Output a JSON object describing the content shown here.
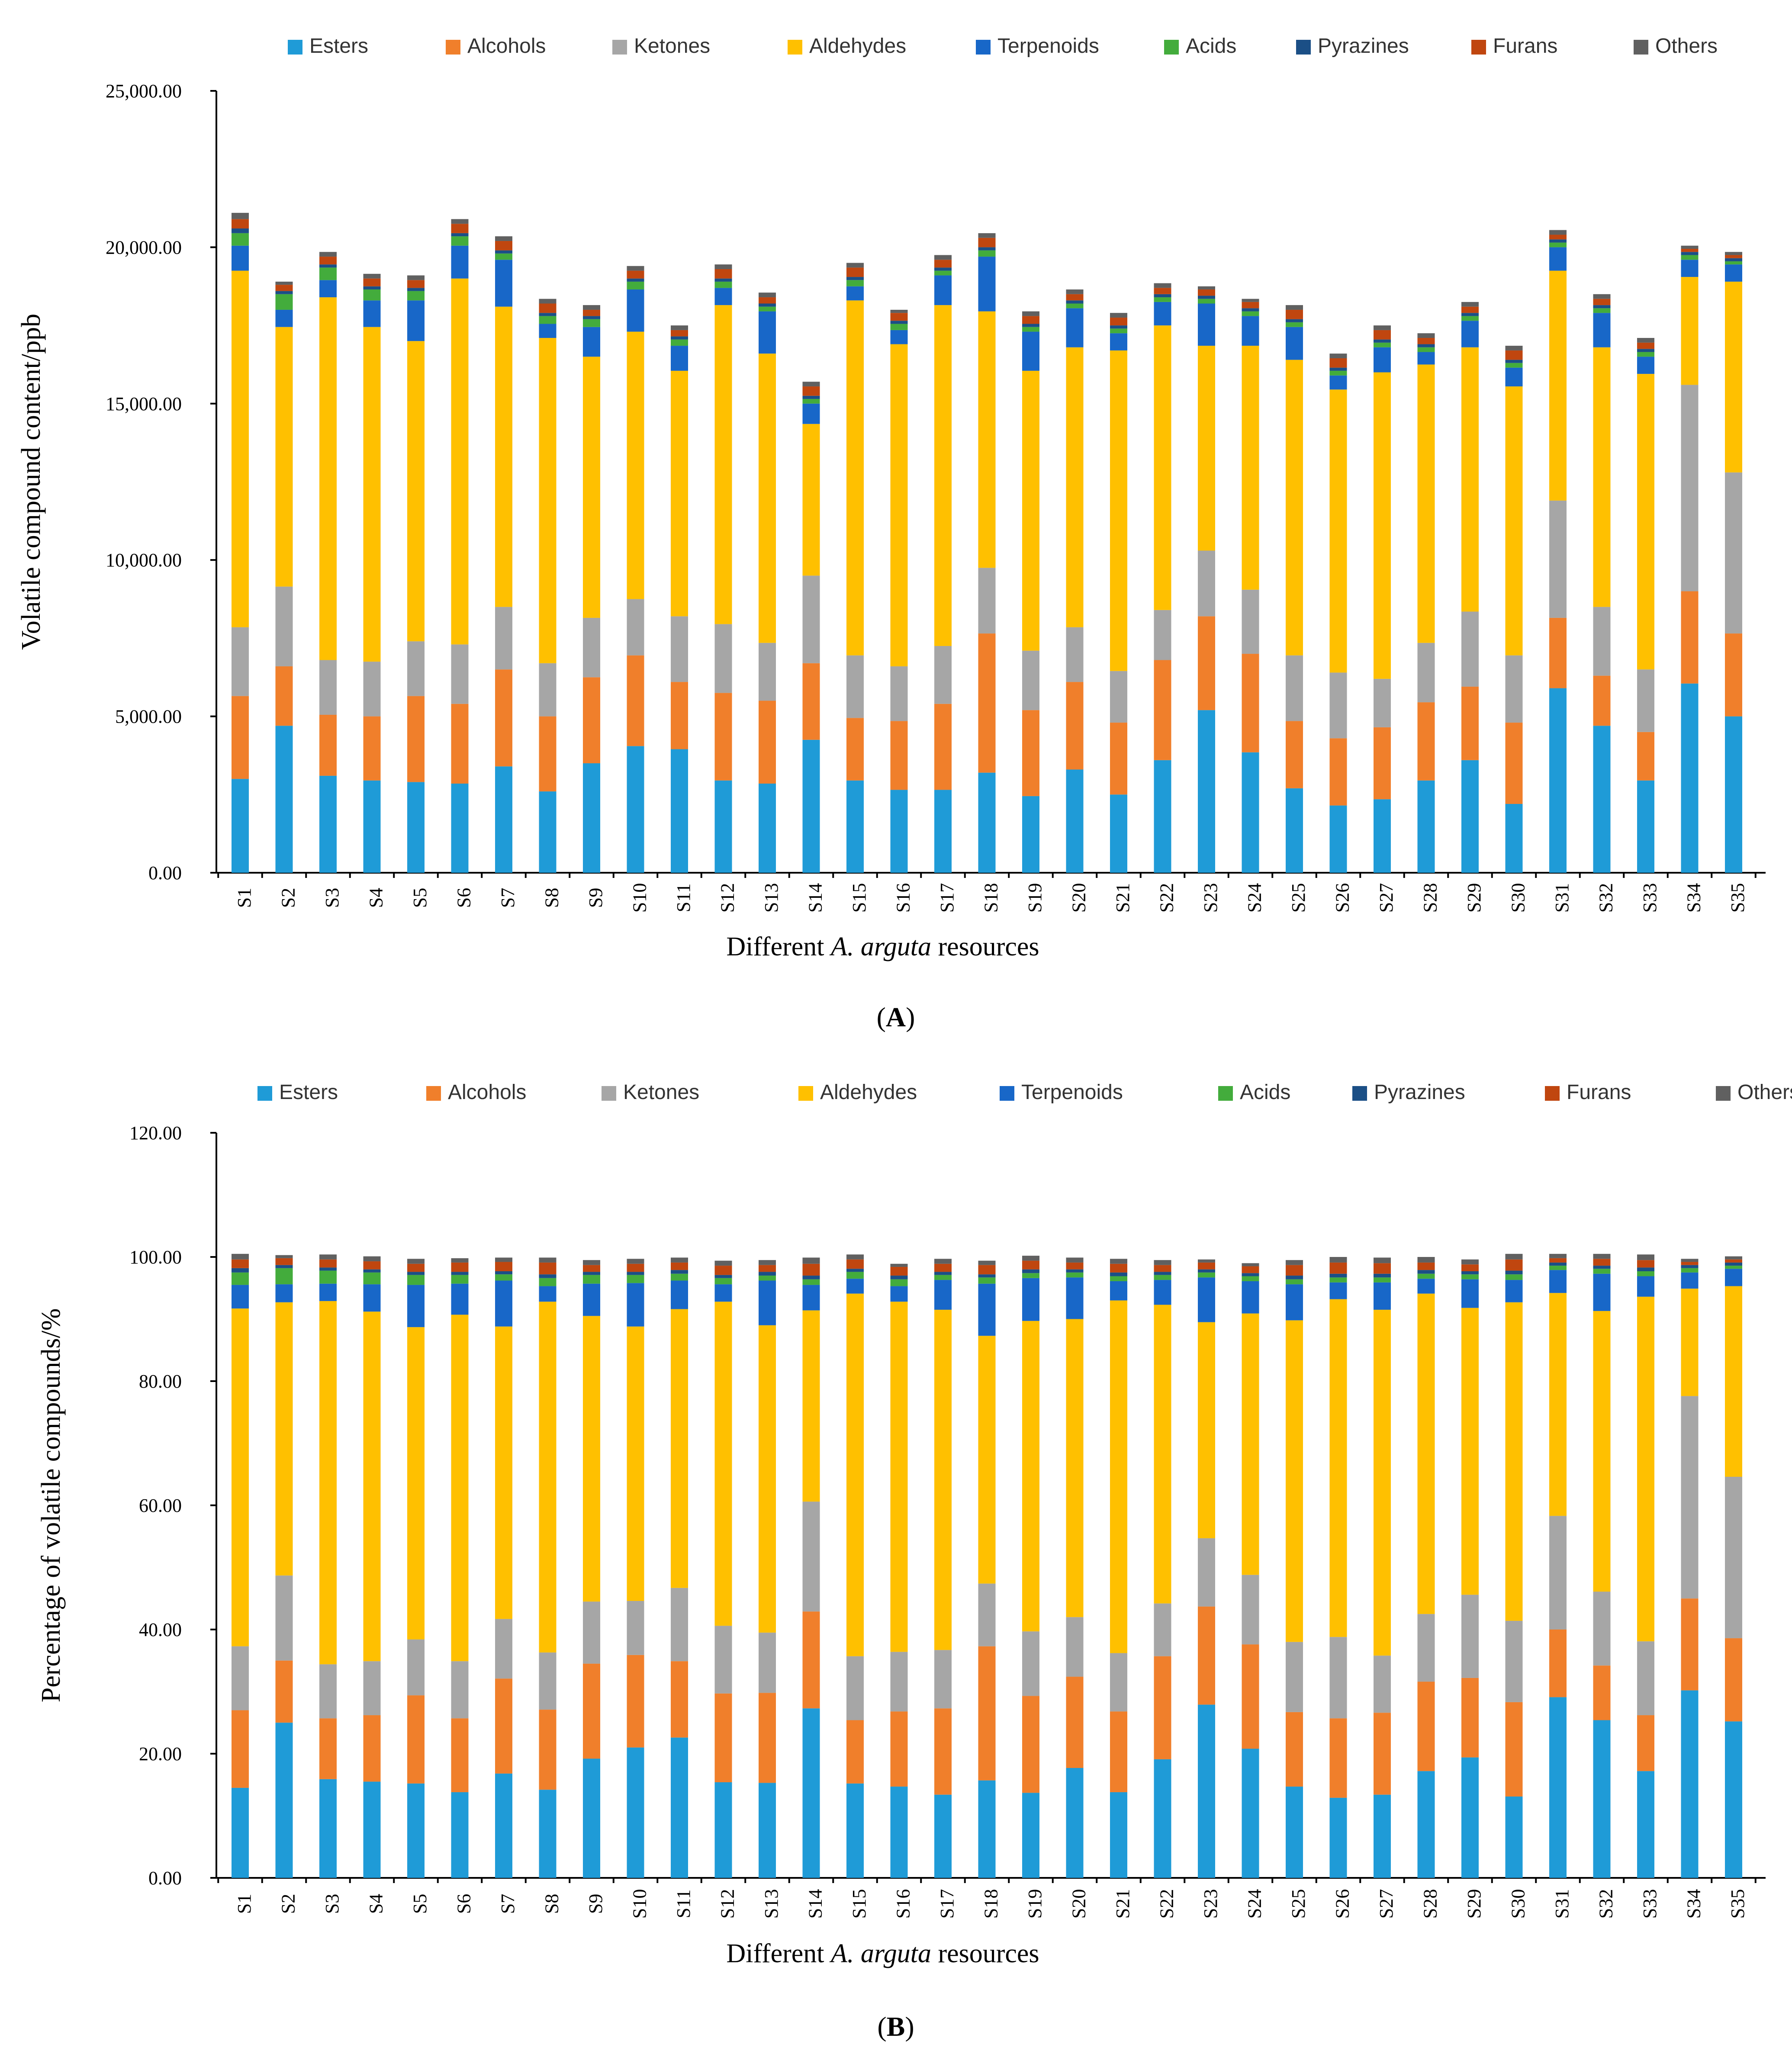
{
  "chart_data": [
    {
      "type": "bar",
      "stacked": true,
      "panel_label": "A",
      "xlabel_prefix": "Different",
      "xlabel_species": "A. arguta",
      "xlabel_suffix": "resources",
      "ylabel": "Volatile compound content/ppb",
      "ylim": [
        0,
        25000
      ],
      "yticks": [
        "0.00",
        "5,000.00",
        "10,000.00",
        "15,000.00",
        "20,000.00",
        "25,000.00"
      ],
      "categories": [
        "S1",
        "S2",
        "S3",
        "S4",
        "S5",
        "S6",
        "S7",
        "S8",
        "S9",
        "S10",
        "S11",
        "S12",
        "S13",
        "S14",
        "S15",
        "S16",
        "S17",
        "S18",
        "S19",
        "S20",
        "S21",
        "S22",
        "S23",
        "S24",
        "S25",
        "S26",
        "S27",
        "S28",
        "S29",
        "S30",
        "S31",
        "S32",
        "S33",
        "S34",
        "S35"
      ],
      "legend": [
        "Esters",
        "Alcohols",
        "Ketones",
        "Aldehydes",
        "Terpenoids",
        "Acids",
        "Pyrazines",
        "Furans",
        "Others"
      ],
      "series": [
        {
          "name": "Esters",
          "color": "#1f9bd7",
          "values": [
            3000,
            4700,
            3100,
            2950,
            2900,
            2850,
            3400,
            2600,
            3500,
            4050,
            3950,
            2950,
            2850,
            4250,
            2950,
            2650,
            2650,
            3200,
            2450,
            3300,
            2500,
            3600,
            5200,
            3850,
            2700,
            2150,
            2350,
            2950,
            3600,
            2200,
            5900,
            4700,
            2950,
            6050,
            5000
          ]
        },
        {
          "name": "Alcohols",
          "color": "#f07f2b",
          "values": [
            2650,
            1900,
            1950,
            2050,
            2750,
            2550,
            3100,
            2400,
            2750,
            2900,
            2150,
            2800,
            2650,
            2450,
            2000,
            2200,
            2750,
            4450,
            2750,
            2800,
            2300,
            3200,
            3000,
            3150,
            2150,
            2150,
            2300,
            2500,
            2350,
            2600,
            2250,
            1600,
            1550,
            2950,
            2650
          ]
        },
        {
          "name": "Ketones",
          "color": "#a6a6a6",
          "values": [
            2200,
            2550,
            1750,
            1750,
            1750,
            1900,
            2000,
            1700,
            1900,
            1800,
            2100,
            2200,
            1850,
            2800,
            2000,
            1750,
            1850,
            2100,
            1900,
            1750,
            1650,
            1600,
            2100,
            2050,
            2100,
            2100,
            1550,
            1900,
            2400,
            2150,
            3750,
            2200,
            2000,
            6600,
            5150
          ]
        },
        {
          "name": "Aldehydes",
          "color": "#ffc000",
          "values": [
            11400,
            8300,
            11600,
            10700,
            9600,
            11700,
            9600,
            10400,
            8350,
            8550,
            7850,
            10200,
            9250,
            4850,
            11350,
            10300,
            10900,
            8200,
            8950,
            8950,
            10250,
            9100,
            6550,
            7800,
            9450,
            9050,
            9800,
            8900,
            8450,
            8600,
            7350,
            8300,
            9450,
            3450,
            6100
          ]
        },
        {
          "name": "Terpenoids",
          "color": "#1867c8",
          "values": [
            800,
            550,
            550,
            850,
            1300,
            1050,
            1500,
            450,
            950,
            1350,
            800,
            550,
            1350,
            650,
            450,
            450,
            950,
            1750,
            1250,
            1250,
            550,
            750,
            1350,
            950,
            1050,
            450,
            800,
            400,
            850,
            600,
            750,
            1100,
            550,
            550,
            550
          ]
        },
        {
          "name": "Acids",
          "color": "#43ac3c",
          "values": [
            400,
            500,
            400,
            350,
            300,
            300,
            200,
            250,
            250,
            250,
            200,
            200,
            150,
            150,
            200,
            200,
            150,
            200,
            150,
            150,
            150,
            150,
            150,
            150,
            150,
            150,
            150,
            150,
            150,
            150,
            150,
            150,
            150,
            150,
            100
          ]
        },
        {
          "name": "Pyrazines",
          "color": "#1b4f86",
          "values": [
            150,
            100,
            100,
            100,
            100,
            100,
            100,
            100,
            100,
            100,
            100,
            100,
            100,
            100,
            100,
            100,
            100,
            100,
            100,
            100,
            100,
            100,
            100,
            100,
            100,
            100,
            100,
            100,
            100,
            100,
            100,
            100,
            100,
            100,
            100
          ]
        },
        {
          "name": "Furans",
          "color": "#c0460f",
          "values": [
            300,
            200,
            250,
            250,
            250,
            300,
            300,
            300,
            200,
            250,
            200,
            300,
            200,
            300,
            300,
            250,
            250,
            300,
            250,
            200,
            250,
            200,
            200,
            200,
            300,
            300,
            300,
            200,
            200,
            300,
            150,
            200,
            200,
            100,
            100
          ]
        },
        {
          "name": "Others",
          "color": "#606060",
          "values": [
            200,
            100,
            150,
            150,
            150,
            150,
            150,
            150,
            150,
            150,
            150,
            150,
            150,
            150,
            150,
            100,
            150,
            150,
            150,
            150,
            150,
            150,
            100,
            100,
            150,
            150,
            150,
            150,
            150,
            150,
            150,
            150,
            150,
            100,
            100
          ]
        }
      ]
    },
    {
      "type": "bar",
      "stacked": true,
      "panel_label": "B",
      "xlabel_prefix": "Different",
      "xlabel_species": "A. arguta",
      "xlabel_suffix": "resources",
      "ylabel": "Percentage of volatile compounds/%",
      "ylim": [
        0,
        120
      ],
      "yticks": [
        "0.00",
        "20.00",
        "40.00",
        "60.00",
        "80.00",
        "100.00",
        "120.00"
      ],
      "categories": [
        "S1",
        "S2",
        "S3",
        "S4",
        "S5",
        "S6",
        "S7",
        "S8",
        "S9",
        "S10",
        "S11",
        "S12",
        "S13",
        "S14",
        "S15",
        "S16",
        "S17",
        "S18",
        "S19",
        "S20",
        "S21",
        "S22",
        "S23",
        "S24",
        "S25",
        "S26",
        "S27",
        "S28",
        "S29",
        "S30",
        "S31",
        "S32",
        "S33",
        "S34",
        "S35"
      ],
      "legend": [
        "Esters",
        "Alcohols",
        "Ketones",
        "Aldehydes",
        "Terpenoids",
        "Acids",
        "Pyrazines",
        "Furans",
        "Others"
      ],
      "series": [
        {
          "name": "Esters",
          "color": "#1f9bd7",
          "values": [
            14.5,
            25.0,
            15.9,
            15.5,
            15.2,
            13.8,
            16.8,
            14.2,
            19.2,
            21.0,
            22.6,
            15.4,
            15.3,
            27.3,
            15.2,
            14.7,
            13.4,
            15.7,
            13.7,
            17.7,
            13.8,
            19.1,
            27.9,
            20.8,
            14.7,
            12.9,
            13.4,
            17.2,
            19.4,
            13.1,
            29.1,
            25.4,
            17.2,
            30.2,
            25.2
          ]
        },
        {
          "name": "Alcohols",
          "color": "#f07f2b",
          "values": [
            12.5,
            10.0,
            9.8,
            10.7,
            14.2,
            11.9,
            15.3,
            12.9,
            15.3,
            14.9,
            12.3,
            14.3,
            14.5,
            15.6,
            10.2,
            12.1,
            13.9,
            21.6,
            15.6,
            14.7,
            13.0,
            16.6,
            15.8,
            16.8,
            12.0,
            12.8,
            13.2,
            14.4,
            12.8,
            15.2,
            10.9,
            8.8,
            9.0,
            14.8,
            13.4
          ]
        },
        {
          "name": "Ketones",
          "color": "#a6a6a6",
          "values": [
            10.3,
            13.7,
            8.7,
            8.7,
            9.0,
            9.2,
            9.6,
            9.2,
            10.0,
            8.7,
            11.8,
            10.9,
            9.7,
            17.7,
            10.3,
            9.6,
            9.4,
            10.1,
            10.4,
            9.6,
            9.4,
            8.5,
            11.0,
            11.2,
            11.3,
            13.1,
            9.2,
            10.9,
            13.4,
            13.1,
            18.3,
            11.9,
            11.9,
            32.6,
            26.0
          ]
        },
        {
          "name": "Aldehydes",
          "color": "#ffc000",
          "values": [
            54.4,
            44.0,
            58.5,
            56.3,
            50.3,
            55.8,
            47.1,
            56.5,
            46.0,
            44.2,
            44.9,
            52.2,
            49.5,
            30.8,
            58.4,
            56.4,
            54.8,
            39.9,
            50.0,
            48.0,
            56.8,
            48.1,
            34.8,
            42.1,
            51.8,
            54.4,
            55.7,
            51.6,
            46.2,
            51.3,
            35.9,
            45.2,
            55.5,
            17.3,
            30.7
          ]
        },
        {
          "name": "Terpenoids",
          "color": "#1867c8",
          "values": [
            3.8,
            2.9,
            2.8,
            4.4,
            6.8,
            5.0,
            7.4,
            2.5,
            5.2,
            7.0,
            4.6,
            2.8,
            7.2,
            4.1,
            2.4,
            2.5,
            4.8,
            8.4,
            6.9,
            6.7,
            3.1,
            4.0,
            7.2,
            5.2,
            5.8,
            2.7,
            4.4,
            2.4,
            4.6,
            3.6,
            3.7,
            6.0,
            3.3,
            2.6,
            2.8
          ]
        },
        {
          "name": "Acids",
          "color": "#43ac3c",
          "values": [
            2.0,
            2.6,
            2.1,
            1.9,
            1.6,
            1.4,
            1.0,
            1.3,
            1.4,
            1.3,
            1.1,
            1.0,
            0.8,
            0.9,
            1.1,
            1.1,
            0.8,
            1.0,
            0.8,
            0.8,
            0.8,
            0.8,
            0.8,
            0.8,
            0.8,
            0.8,
            0.8,
            0.8,
            0.8,
            0.9,
            0.7,
            0.8,
            0.8,
            0.7,
            0.5
          ]
        },
        {
          "name": "Pyrazines",
          "color": "#1b4f86",
          "values": [
            0.7,
            0.5,
            0.5,
            0.5,
            0.5,
            0.5,
            0.5,
            0.6,
            0.5,
            0.5,
            0.6,
            0.5,
            0.6,
            0.6,
            0.5,
            0.6,
            0.5,
            0.5,
            0.6,
            0.5,
            0.6,
            0.5,
            0.5,
            0.5,
            0.6,
            0.6,
            0.6,
            0.6,
            0.5,
            0.6,
            0.5,
            0.5,
            0.6,
            0.5,
            0.5
          ]
        },
        {
          "name": "Furans",
          "color": "#c0460f",
          "values": [
            1.4,
            1.1,
            1.3,
            1.3,
            1.3,
            1.5,
            1.5,
            1.9,
            1.1,
            1.3,
            1.2,
            1.5,
            1.1,
            1.9,
            1.5,
            1.4,
            1.3,
            1.5,
            1.4,
            1.1,
            1.4,
            1.1,
            1.1,
            1.1,
            1.7,
            1.8,
            1.7,
            1.2,
            1.1,
            1.8,
            0.7,
            1.1,
            1.2,
            0.5,
            0.5
          ]
        },
        {
          "name": "Others",
          "color": "#606060",
          "values": [
            0.9,
            0.5,
            0.8,
            0.8,
            0.8,
            0.7,
            0.7,
            0.8,
            0.8,
            0.8,
            0.8,
            0.8,
            0.8,
            1.0,
            0.8,
            0.5,
            0.8,
            0.7,
            0.8,
            0.8,
            0.8,
            0.8,
            0.5,
            0.5,
            0.8,
            0.9,
            0.9,
            0.9,
            0.8,
            0.9,
            0.7,
            0.8,
            0.9,
            0.5,
            0.5
          ]
        }
      ]
    }
  ]
}
